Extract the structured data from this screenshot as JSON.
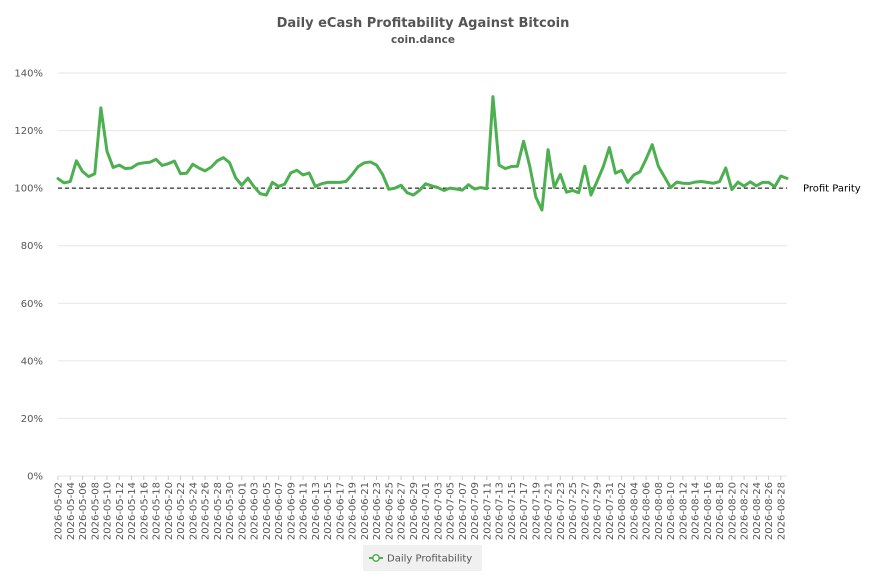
{
  "chart_data": {
    "type": "line",
    "title": "Daily eCash Profitability Against Bitcoin",
    "subtitle": "coin.dance",
    "xlabel": "",
    "ylabel": "",
    "ylim": [
      0,
      140
    ],
    "y_ticks": [
      "0%",
      "20%",
      "40%",
      "60%",
      "80%",
      "100%",
      "120%",
      "140%"
    ],
    "y_tick_values": [
      0,
      20,
      40,
      60,
      80,
      100,
      120,
      140
    ],
    "grid": true,
    "legend_position": "bottom",
    "reference_line": {
      "value": 100,
      "label": "Profit Parity",
      "style": "dashed"
    },
    "series": [
      {
        "name": "Daily Profitability",
        "color": "#4caf50",
        "values": [
          103.3,
          101.8,
          102.3,
          109.5,
          105.8,
          104.0,
          105.0,
          127.9,
          112.8,
          107.2,
          108.0,
          106.8,
          107.0,
          108.4,
          108.8,
          109.0,
          110.0,
          107.9,
          108.5,
          109.4,
          105.0,
          105.2,
          108.3,
          107.0,
          106.0,
          107.3,
          109.5,
          110.6,
          108.9,
          103.6,
          101.0,
          103.5,
          100.5,
          98.1,
          97.6,
          102.0,
          100.6,
          101.4,
          105.3,
          106.2,
          104.6,
          105.3,
          100.6,
          101.5,
          102.0,
          102.0,
          102.0,
          102.3,
          104.7,
          107.5,
          108.8,
          109.1,
          108.0,
          104.7,
          99.6,
          100.0,
          101.0,
          98.4,
          97.6,
          99.2,
          101.5,
          100.8,
          100.2,
          99.2,
          100.0,
          99.7,
          99.3,
          101.2,
          99.7,
          100.2,
          99.8,
          131.8,
          108.0,
          106.8,
          107.5,
          107.6,
          116.3,
          107.7,
          96.9,
          92.4,
          113.4,
          100.3,
          104.8,
          98.6,
          99.2,
          98.4,
          107.6,
          97.6,
          102.4,
          107.4,
          114.1,
          105.2,
          106.2,
          102.0,
          104.6,
          105.7,
          110.1,
          115.1,
          107.6,
          103.9,
          100.2,
          102.1,
          101.7,
          101.6,
          102.1,
          102.3,
          102.0,
          101.7,
          102.3,
          107.0,
          99.5,
          102.1,
          100.7,
          102.2,
          100.8,
          102.0,
          102.0,
          100.5,
          104.2,
          103.4
        ]
      }
    ],
    "x_tick_labels": [
      "2026-05-02",
      "2026-05-04",
      "2026-05-06",
      "2026-05-08",
      "2026-05-10",
      "2026-05-12",
      "2026-05-14",
      "2026-05-16",
      "2026-05-18",
      "2026-05-20",
      "2026-05-22",
      "2026-05-24",
      "2026-05-26",
      "2026-05-28",
      "2026-05-30",
      "2026-06-01",
      "2026-06-03",
      "2026-06-05",
      "2026-06-07",
      "2026-06-09",
      "2026-06-11",
      "2026-06-13",
      "2026-06-15",
      "2026-06-17",
      "2026-06-19",
      "2026-06-21",
      "2026-06-23",
      "2026-06-25",
      "2026-06-27",
      "2026-06-29",
      "2026-07-01",
      "2026-07-03",
      "2026-07-05",
      "2026-07-07",
      "2026-07-09",
      "2026-07-11",
      "2026-07-13",
      "2026-07-15",
      "2026-07-17",
      "2026-07-19",
      "2026-07-21",
      "2026-07-23",
      "2026-07-25",
      "2026-07-27",
      "2026-07-29",
      "2026-07-31",
      "2026-08-02",
      "2026-08-04",
      "2026-08-06",
      "2026-08-08",
      "2026-08-10",
      "2026-08-12",
      "2026-08-14",
      "2026-08-16",
      "2026-08-18",
      "2026-08-20",
      "2026-08-22",
      "2026-08-24",
      "2026-08-26",
      "2026-08-28"
    ]
  }
}
